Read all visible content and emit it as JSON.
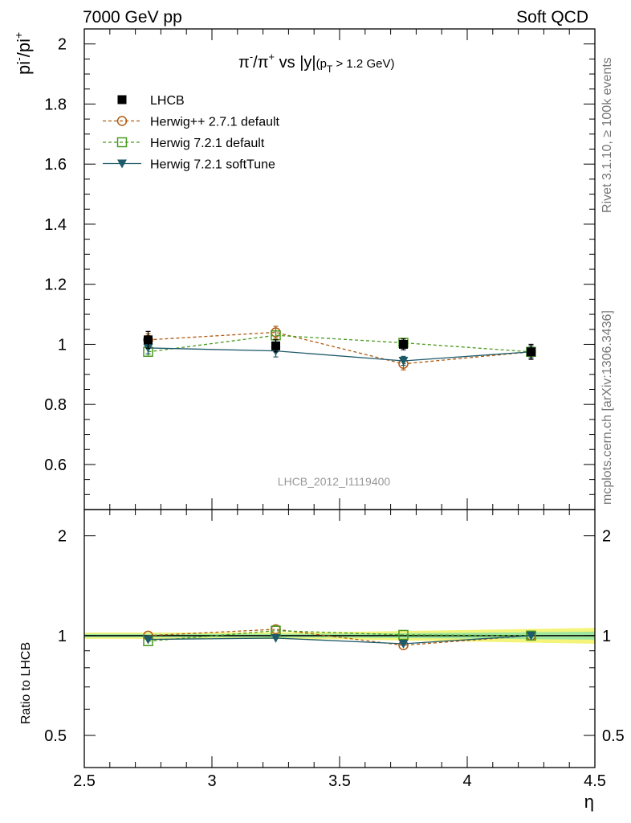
{
  "header": {
    "left": "7000 GeV pp",
    "right": "Soft QCD"
  },
  "side_labels": {
    "rivet": "Rivet 3.1.10, ≥ 100k events",
    "mcplots": "mcplots.cern.ch [arXiv:1306.3436]"
  },
  "watermark": "LHCB_2012_I1119400",
  "chart_data": [
    {
      "type": "line",
      "panel": "main",
      "title_parts": {
        "pi": "π",
        "minus": "-",
        "slash": "/",
        "plus": "+",
        "vs": " vs |y|",
        "cut_open": "(p",
        "cut_sub": "T",
        "cut_close": " > 1.2 GeV)"
      },
      "ylabel_parts": {
        "a": "pi",
        "a_sup": "-",
        "b": "/pi",
        "b_sup": "+"
      },
      "xlabel": "",
      "xlim": [
        2.5,
        4.5
      ],
      "ylim": [
        0.45,
        2.05
      ],
      "yticks": [
        0.6,
        0.8,
        1.0,
        1.2,
        1.4,
        1.6,
        1.8,
        2.0
      ],
      "ytick_labels": [
        "0.6",
        "0.8",
        "1",
        "1.2",
        "1.4",
        "1.6",
        "1.8",
        "2"
      ],
      "grid": false,
      "legend_placement": "top-left",
      "series": [
        {
          "name": "LHCB",
          "color": "#000000",
          "marker": "square-filled",
          "line": "none",
          "x": [
            2.75,
            3.25,
            3.75,
            4.25
          ],
          "y": [
            1.015,
            0.995,
            1.0,
            0.975
          ],
          "yerr": [
            0.028,
            0.02,
            0.018,
            0.025
          ]
        },
        {
          "name": "Herwig++ 2.7.1 default",
          "color": "#b05a10",
          "marker": "circle-open",
          "line": "dashed",
          "x": [
            2.75,
            3.25,
            3.75,
            4.25
          ],
          "y": [
            1.015,
            1.04,
            0.935,
            0.975
          ],
          "yerr": [
            0.02,
            0.02,
            0.02,
            0.02
          ]
        },
        {
          "name": "Herwig 7.2.1 default",
          "color": "#4a9a20",
          "marker": "square-open",
          "line": "dashed",
          "x": [
            2.75,
            3.25,
            3.75,
            4.25
          ],
          "y": [
            0.975,
            1.03,
            1.005,
            0.975
          ],
          "yerr": [
            0.015,
            0.015,
            0.015,
            0.015
          ]
        },
        {
          "name": "Herwig 7.2.1 softTune",
          "color": "#1f5a6a",
          "marker": "triangle-down-filled",
          "line": "solid",
          "x": [
            2.75,
            3.25,
            3.75,
            4.25
          ],
          "y": [
            0.988,
            0.978,
            0.945,
            0.975
          ],
          "yerr": [
            0.02,
            0.02,
            0.015,
            0.02
          ]
        }
      ]
    },
    {
      "type": "line",
      "panel": "ratio",
      "ylabel": "Ratio to LHCB",
      "xlabel": "η",
      "xlim": [
        2.5,
        4.5
      ],
      "ylim": [
        0.4,
        2.4
      ],
      "log_y": true,
      "yticks": [
        0.5,
        1,
        2
      ],
      "ytick_labels": [
        "0.5",
        "1",
        "2"
      ],
      "xticks": [
        2.5,
        3,
        3.5,
        4,
        4.5
      ],
      "xtick_labels": [
        "2.5",
        "3",
        "3.5",
        "4",
        "4.5"
      ],
      "band": {
        "x": [
          2.5,
          3.0,
          3.5,
          4.0,
          4.5
        ],
        "inner": [
          0.012,
          0.012,
          0.014,
          0.02,
          0.028
        ],
        "outer": [
          0.022,
          0.022,
          0.025,
          0.04,
          0.055
        ]
      },
      "series": [
        {
          "name": "Herwig++ 2.7.1 default",
          "x": [
            2.75,
            3.25,
            3.75,
            4.25
          ],
          "y": [
            1.0,
            1.045,
            0.935,
            1.0
          ]
        },
        {
          "name": "Herwig 7.2.1 default",
          "x": [
            2.75,
            3.25,
            3.75,
            4.25
          ],
          "y": [
            0.962,
            1.035,
            1.005,
            1.0
          ]
        },
        {
          "name": "Herwig 7.2.1 softTune",
          "x": [
            2.75,
            3.25,
            3.75,
            4.25
          ],
          "y": [
            0.974,
            0.983,
            0.945,
            1.0
          ]
        }
      ]
    }
  ]
}
